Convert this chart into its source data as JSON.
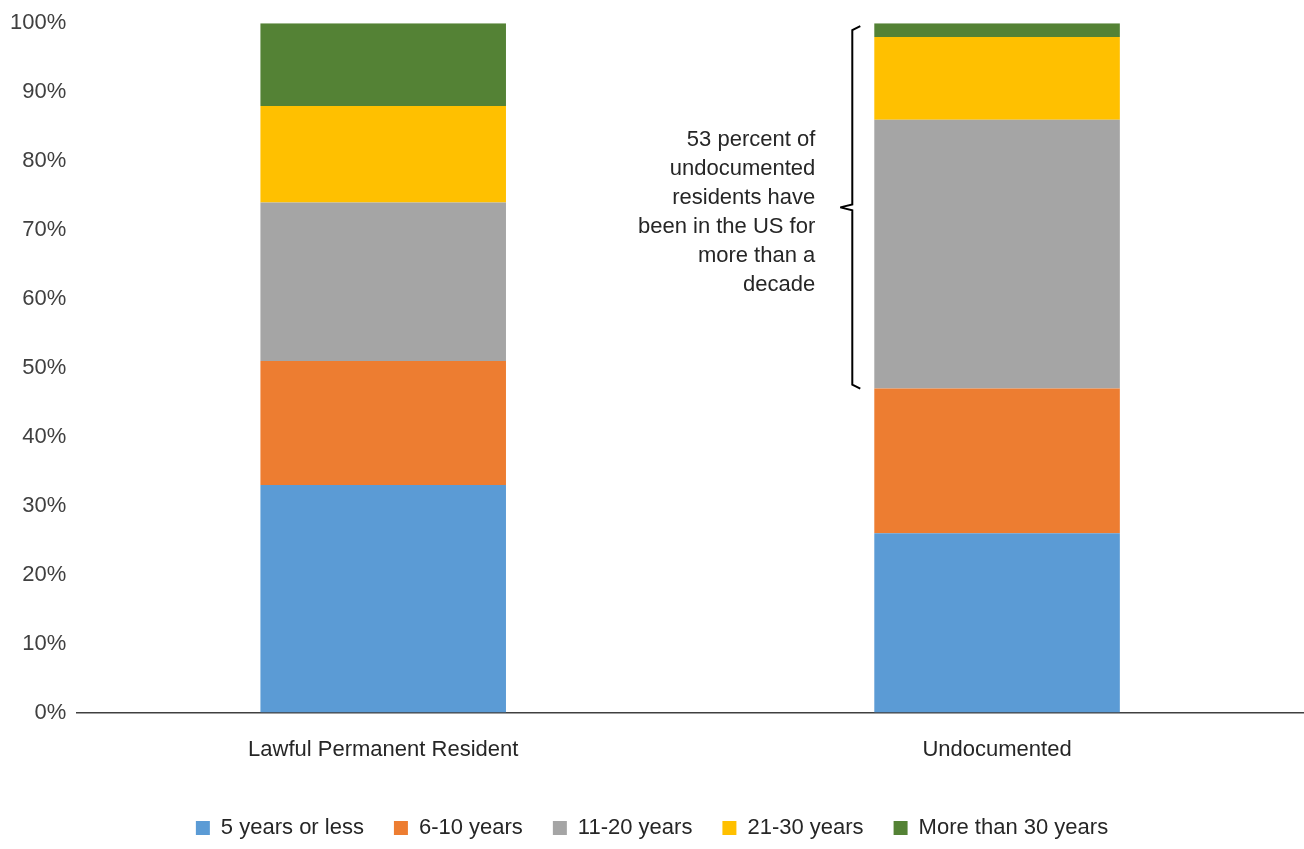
{
  "chart_data": {
    "type": "bar",
    "stacked": true,
    "categories": [
      "Lawful Permanent Resident",
      "Undocumented"
    ],
    "series": [
      {
        "name": "5 years or less",
        "color": "#5b9bd5",
        "values": [
          33,
          26
        ]
      },
      {
        "name": "6-10 years",
        "color": "#ed7d31",
        "values": [
          18,
          21
        ]
      },
      {
        "name": "11-20 years",
        "color": "#a5a5a5",
        "values": [
          23,
          39
        ]
      },
      {
        "name": "21-30 years",
        "color": "#ffc000",
        "values": [
          14,
          12
        ]
      },
      {
        "name": "More than 30 years",
        "color": "#548235",
        "values": [
          12,
          2
        ]
      }
    ],
    "ylim": [
      0,
      100
    ],
    "yticks": [
      {
        "value": 0,
        "label": "0%"
      },
      {
        "value": 10,
        "label": "10%"
      },
      {
        "value": 20,
        "label": "20%"
      },
      {
        "value": 30,
        "label": "30%"
      },
      {
        "value": 40,
        "label": "40%"
      },
      {
        "value": 50,
        "label": "50%"
      },
      {
        "value": 60,
        "label": "60%"
      },
      {
        "value": 70,
        "label": "70%"
      },
      {
        "value": 80,
        "label": "80%"
      },
      {
        "value": 90,
        "label": "90%"
      },
      {
        "value": 100,
        "label": "100%"
      }
    ],
    "grid": false,
    "legend": "bottom",
    "annotations": [
      "53 percent of undocumented residents have been in the US for more than a decade"
    ]
  }
}
